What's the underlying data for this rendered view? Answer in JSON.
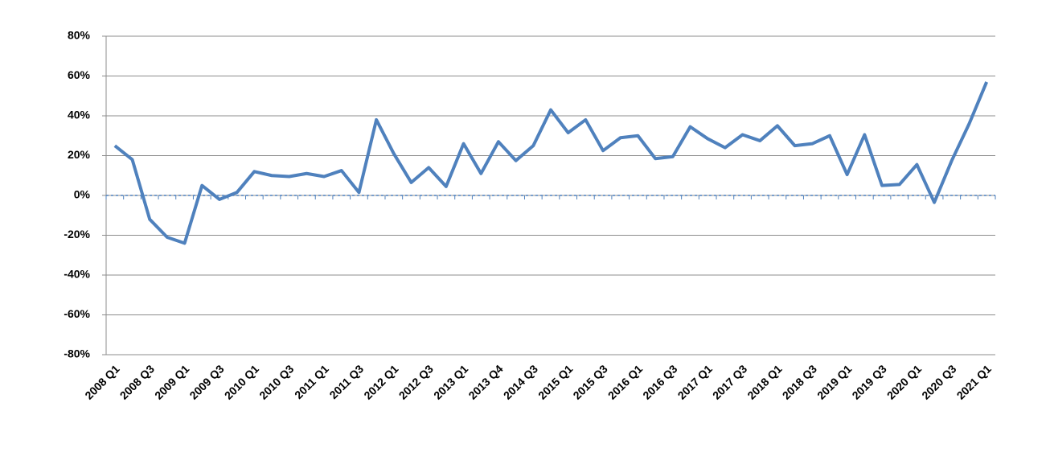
{
  "chart_data": {
    "type": "line",
    "categories": [
      "2008 Q1",
      null,
      "2008 Q3",
      null,
      "2009 Q1",
      null,
      "2009 Q3",
      null,
      "2010 Q1",
      null,
      "2010 Q3",
      null,
      "2011 Q1",
      null,
      "2011 Q3",
      null,
      "2012 Q1",
      null,
      "2012 Q3",
      null,
      "2013 Q1",
      null,
      "2013 Q4",
      null,
      "2014 Q3",
      null,
      "2015 Q1",
      null,
      "2015 Q3",
      null,
      "2016 Q1",
      null,
      "2016 Q3",
      null,
      "2017 Q1",
      null,
      "2017 Q3",
      null,
      "2018 Q1",
      null,
      "2018 Q3",
      null,
      "2019 Q1",
      null,
      "2019 Q3",
      null,
      "2020 Q1",
      null,
      "2020 Q3",
      null,
      "2021 Q1"
    ],
    "series": [
      {
        "color": "#4f81bd",
        "values": [
          25,
          18,
          -12,
          -21,
          -24,
          5,
          -2,
          1.5,
          12,
          10,
          9.5,
          11,
          9.5,
          12.5,
          1.5,
          38,
          21,
          6.5,
          14,
          4.5,
          26,
          11,
          27,
          17.5,
          25,
          43,
          31.5,
          38,
          22.5,
          29,
          30,
          18.5,
          19.5,
          34.5,
          28.5,
          24,
          30.5,
          27.5,
          35,
          25,
          26,
          30,
          10.5,
          30.5,
          5,
          5.5,
          15.5,
          -3.5,
          17.5,
          36,
          57
        ]
      }
    ],
    "ylim": [
      -80,
      80
    ],
    "yticks": [
      {
        "value": -80,
        "label": "-80%"
      },
      {
        "value": -60,
        "label": "-60%"
      },
      {
        "value": -40,
        "label": "-40%"
      },
      {
        "value": -20,
        "label": "-20%"
      },
      {
        "value": 0,
        "label": "0%"
      },
      {
        "value": 20,
        "label": "20%"
      },
      {
        "value": 40,
        "label": "40%"
      },
      {
        "value": 60,
        "label": "60%"
      },
      {
        "value": 80,
        "label": "80%"
      }
    ],
    "grid": true
  }
}
